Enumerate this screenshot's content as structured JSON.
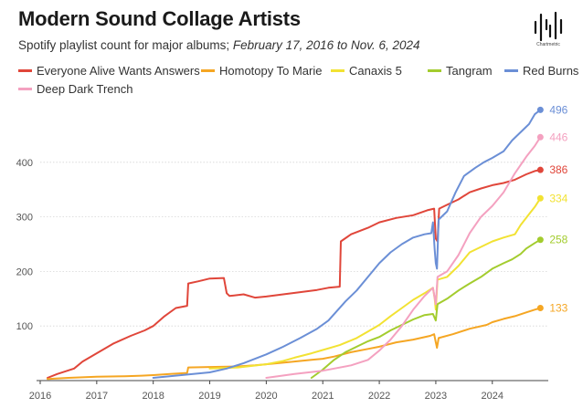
{
  "header": {
    "title": "Modern Sound Collage Artists",
    "subtitle_prefix": "Spotify playlist count for major albums; ",
    "subtitle_dates": "February 17, 2016 to Nov. 6, 2024"
  },
  "logo": {
    "name": "Chartmetric",
    "text": "Chartmetric"
  },
  "chart_data": {
    "type": "line",
    "title": "Modern Sound Collage Artists",
    "subtitle": "Spotify playlist count for major albums; February 17, 2016 to Nov. 6, 2024",
    "xlabel": "",
    "ylabel": "",
    "xlim": [
      2016.0,
      2024.99
    ],
    "ylim": [
      0,
      500
    ],
    "x_ticks": [
      2016,
      2017,
      2018,
      2019,
      2020,
      2021,
      2022,
      2023,
      2024
    ],
    "x_tick_labels": [
      "2016",
      "2017",
      "2018",
      "2019",
      "2020",
      "2021",
      "2022",
      "2023",
      "2024"
    ],
    "y_ticks": [
      100,
      200,
      300,
      400
    ],
    "y_tick_labels": [
      "100",
      "200",
      "300",
      "400"
    ],
    "grid": "horizontal",
    "legend_position": "top",
    "series": [
      {
        "name": "Everyone Alive Wants Answers",
        "color": "#e0463a",
        "end_label": "386",
        "points": [
          [
            2016.13,
            5
          ],
          [
            2016.3,
            12
          ],
          [
            2016.6,
            22
          ],
          [
            2016.75,
            35
          ],
          [
            2017.0,
            50
          ],
          [
            2017.3,
            68
          ],
          [
            2017.6,
            82
          ],
          [
            2017.85,
            92
          ],
          [
            2018.0,
            100
          ],
          [
            2018.2,
            118
          ],
          [
            2018.4,
            133
          ],
          [
            2018.6,
            137
          ],
          [
            2018.62,
            178
          ],
          [
            2018.8,
            182
          ],
          [
            2019.0,
            187
          ],
          [
            2019.25,
            188
          ],
          [
            2019.3,
            160
          ],
          [
            2019.35,
            155
          ],
          [
            2019.6,
            158
          ],
          [
            2019.8,
            152
          ],
          [
            2020.0,
            154
          ],
          [
            2020.3,
            158
          ],
          [
            2020.6,
            162
          ],
          [
            2020.9,
            166
          ],
          [
            2021.1,
            170
          ],
          [
            2021.3,
            172
          ],
          [
            2021.32,
            255
          ],
          [
            2021.5,
            268
          ],
          [
            2021.8,
            280
          ],
          [
            2022.0,
            290
          ],
          [
            2022.3,
            298
          ],
          [
            2022.6,
            303
          ],
          [
            2022.85,
            312
          ],
          [
            2022.97,
            315
          ],
          [
            2023.0,
            260
          ],
          [
            2023.03,
            255
          ],
          [
            2023.06,
            315
          ],
          [
            2023.2,
            322
          ],
          [
            2023.4,
            332
          ],
          [
            2023.6,
            345
          ],
          [
            2023.8,
            352
          ],
          [
            2024.0,
            358
          ],
          [
            2024.2,
            362
          ],
          [
            2024.4,
            368
          ],
          [
            2024.6,
            378
          ],
          [
            2024.75,
            384
          ],
          [
            2024.85,
            386
          ]
        ]
      },
      {
        "name": "Homotopy To Marie",
        "color": "#f5a623",
        "end_label": "133",
        "points": [
          [
            2016.13,
            3
          ],
          [
            2016.5,
            5
          ],
          [
            2017.0,
            7
          ],
          [
            2017.5,
            8
          ],
          [
            2017.8,
            9
          ],
          [
            2018.0,
            10
          ],
          [
            2018.3,
            12
          ],
          [
            2018.6,
            14
          ],
          [
            2018.62,
            24
          ],
          [
            2019.0,
            25
          ],
          [
            2019.5,
            26
          ],
          [
            2019.8,
            28
          ],
          [
            2020.0,
            30
          ],
          [
            2020.4,
            34
          ],
          [
            2020.8,
            38
          ],
          [
            2021.0,
            40
          ],
          [
            2021.2,
            44
          ],
          [
            2021.5,
            52
          ],
          [
            2021.8,
            58
          ],
          [
            2022.0,
            62
          ],
          [
            2022.3,
            70
          ],
          [
            2022.6,
            75
          ],
          [
            2022.9,
            82
          ],
          [
            2022.97,
            85
          ],
          [
            2023.0,
            70
          ],
          [
            2023.02,
            60
          ],
          [
            2023.05,
            78
          ],
          [
            2023.3,
            85
          ],
          [
            2023.6,
            95
          ],
          [
            2023.9,
            102
          ],
          [
            2024.0,
            107
          ],
          [
            2024.2,
            113
          ],
          [
            2024.4,
            118
          ],
          [
            2024.6,
            125
          ],
          [
            2024.75,
            130
          ],
          [
            2024.85,
            133
          ]
        ]
      },
      {
        "name": "Canaxis 5",
        "color": "#f2e233",
        "end_label": "334",
        "points": [
          [
            2019.0,
            22
          ],
          [
            2019.5,
            24
          ],
          [
            2020.0,
            30
          ],
          [
            2020.3,
            36
          ],
          [
            2020.5,
            42
          ],
          [
            2020.8,
            50
          ],
          [
            2021.0,
            56
          ],
          [
            2021.3,
            65
          ],
          [
            2021.6,
            78
          ],
          [
            2021.8,
            90
          ],
          [
            2022.0,
            102
          ],
          [
            2022.2,
            118
          ],
          [
            2022.4,
            133
          ],
          [
            2022.6,
            148
          ],
          [
            2022.8,
            160
          ],
          [
            2022.95,
            170
          ],
          [
            2022.98,
            150
          ],
          [
            2023.0,
            130
          ],
          [
            2023.03,
            185
          ],
          [
            2023.2,
            190
          ],
          [
            2023.4,
            210
          ],
          [
            2023.6,
            235
          ],
          [
            2023.8,
            245
          ],
          [
            2024.0,
            255
          ],
          [
            2024.2,
            262
          ],
          [
            2024.4,
            268
          ],
          [
            2024.5,
            285
          ],
          [
            2024.65,
            305
          ],
          [
            2024.75,
            318
          ],
          [
            2024.85,
            334
          ]
        ]
      },
      {
        "name": "Tangram",
        "color": "#a3cc2e",
        "end_label": "258",
        "points": [
          [
            2020.8,
            5
          ],
          [
            2021.0,
            20
          ],
          [
            2021.2,
            38
          ],
          [
            2021.4,
            52
          ],
          [
            2021.6,
            62
          ],
          [
            2021.8,
            72
          ],
          [
            2022.0,
            80
          ],
          [
            2022.2,
            92
          ],
          [
            2022.4,
            102
          ],
          [
            2022.6,
            112
          ],
          [
            2022.8,
            120
          ],
          [
            2022.95,
            122
          ],
          [
            2023.0,
            110
          ],
          [
            2023.03,
            140
          ],
          [
            2023.2,
            150
          ],
          [
            2023.4,
            165
          ],
          [
            2023.6,
            178
          ],
          [
            2023.8,
            190
          ],
          [
            2024.0,
            205
          ],
          [
            2024.2,
            215
          ],
          [
            2024.35,
            222
          ],
          [
            2024.5,
            232
          ],
          [
            2024.6,
            242
          ],
          [
            2024.75,
            252
          ],
          [
            2024.85,
            258
          ]
        ]
      },
      {
        "name": "Red Burns",
        "color": "#6b8fd6",
        "end_label": "496",
        "points": [
          [
            2018.0,
            5
          ],
          [
            2018.5,
            10
          ],
          [
            2019.0,
            15
          ],
          [
            2019.3,
            22
          ],
          [
            2019.6,
            32
          ],
          [
            2020.0,
            48
          ],
          [
            2020.3,
            62
          ],
          [
            2020.6,
            78
          ],
          [
            2020.9,
            95
          ],
          [
            2021.1,
            110
          ],
          [
            2021.4,
            145
          ],
          [
            2021.6,
            165
          ],
          [
            2021.8,
            190
          ],
          [
            2022.0,
            215
          ],
          [
            2022.2,
            235
          ],
          [
            2022.4,
            250
          ],
          [
            2022.6,
            262
          ],
          [
            2022.8,
            268
          ],
          [
            2022.92,
            270
          ],
          [
            2022.95,
            290
          ],
          [
            2022.98,
            240
          ],
          [
            2023.0,
            215
          ],
          [
            2023.02,
            205
          ],
          [
            2023.05,
            295
          ],
          [
            2023.2,
            310
          ],
          [
            2023.35,
            345
          ],
          [
            2023.5,
            375
          ],
          [
            2023.7,
            390
          ],
          [
            2023.85,
            400
          ],
          [
            2024.0,
            408
          ],
          [
            2024.2,
            420
          ],
          [
            2024.35,
            440
          ],
          [
            2024.5,
            455
          ],
          [
            2024.65,
            470
          ],
          [
            2024.75,
            488
          ],
          [
            2024.85,
            496
          ]
        ]
      },
      {
        "name": "Deep Dark Trench",
        "color": "#f4a1c0",
        "end_label": "446",
        "points": [
          [
            2020.0,
            5
          ],
          [
            2020.5,
            12
          ],
          [
            2021.0,
            18
          ],
          [
            2021.5,
            28
          ],
          [
            2021.8,
            38
          ],
          [
            2022.0,
            55
          ],
          [
            2022.2,
            75
          ],
          [
            2022.4,
            100
          ],
          [
            2022.6,
            130
          ],
          [
            2022.8,
            155
          ],
          [
            2022.95,
            170
          ],
          [
            2023.0,
            140
          ],
          [
            2023.03,
            190
          ],
          [
            2023.2,
            200
          ],
          [
            2023.4,
            230
          ],
          [
            2023.6,
            270
          ],
          [
            2023.8,
            300
          ],
          [
            2024.0,
            320
          ],
          [
            2024.2,
            345
          ],
          [
            2024.4,
            380
          ],
          [
            2024.6,
            410
          ],
          [
            2024.75,
            430
          ],
          [
            2024.85,
            446
          ]
        ]
      }
    ]
  }
}
